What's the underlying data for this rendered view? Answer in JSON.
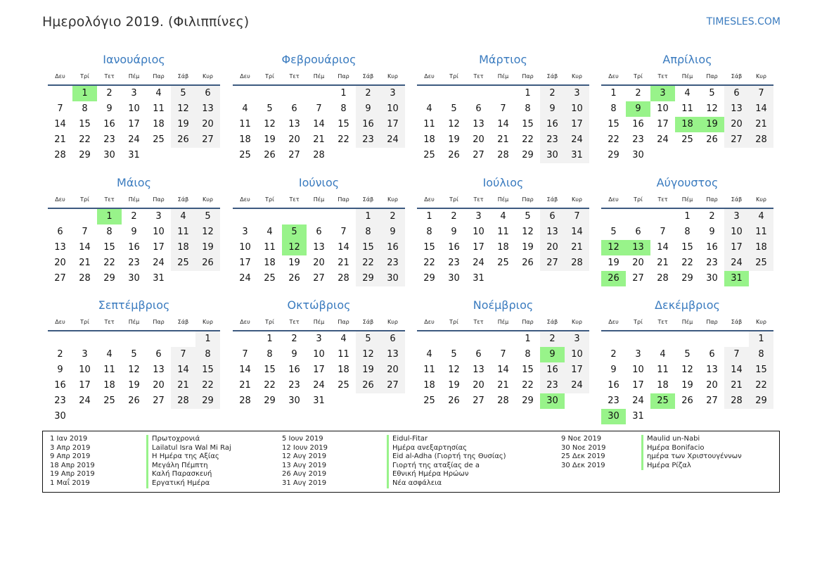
{
  "header": {
    "title": "Ημερολόγιο 2019. (Φιλιππίνες)",
    "site": "TIMESLES.COM"
  },
  "colors": {
    "accent": "#3a7bbf",
    "holiday": "#98f38a",
    "weekend": "#f2f2f2",
    "rule": "#3d5a80"
  },
  "weekdays": [
    "Δευ",
    "Τρί",
    "Τετ",
    "Πέμ",
    "Παρ",
    "Σάβ",
    "Κυρ"
  ],
  "months": [
    {
      "name": "Ιανουάριος",
      "holidays": [
        1
      ],
      "weeks": [
        [
          null,
          1,
          2,
          3,
          4,
          5,
          6
        ],
        [
          7,
          8,
          9,
          10,
          11,
          12,
          13
        ],
        [
          14,
          15,
          16,
          17,
          18,
          19,
          20
        ],
        [
          21,
          22,
          23,
          24,
          25,
          26,
          27
        ],
        [
          28,
          29,
          30,
          31
        ]
      ]
    },
    {
      "name": "Φεβρουάριος",
      "holidays": [],
      "weeks": [
        [
          null,
          null,
          null,
          null,
          1,
          2,
          3
        ],
        [
          4,
          5,
          6,
          7,
          8,
          9,
          10
        ],
        [
          11,
          12,
          13,
          14,
          15,
          16,
          17
        ],
        [
          18,
          19,
          20,
          21,
          22,
          23,
          24
        ],
        [
          25,
          26,
          27,
          28
        ]
      ]
    },
    {
      "name": "Μάρτιος",
      "holidays": [],
      "weeks": [
        [
          null,
          null,
          null,
          null,
          1,
          2,
          3
        ],
        [
          4,
          5,
          6,
          7,
          8,
          9,
          10
        ],
        [
          11,
          12,
          13,
          14,
          15,
          16,
          17
        ],
        [
          18,
          19,
          20,
          21,
          22,
          23,
          24
        ],
        [
          25,
          26,
          27,
          28,
          29,
          30,
          31
        ]
      ]
    },
    {
      "name": "Απρίλιος",
      "holidays": [
        3,
        9,
        18,
        19
      ],
      "weeks": [
        [
          1,
          2,
          3,
          4,
          5,
          6,
          7
        ],
        [
          8,
          9,
          10,
          11,
          12,
          13,
          14
        ],
        [
          15,
          16,
          17,
          18,
          19,
          20,
          21
        ],
        [
          22,
          23,
          24,
          25,
          26,
          27,
          28
        ],
        [
          29,
          30
        ]
      ]
    },
    {
      "name": "Μάιος",
      "holidays": [
        1
      ],
      "weeks": [
        [
          null,
          null,
          1,
          2,
          3,
          4,
          5
        ],
        [
          6,
          7,
          8,
          9,
          10,
          11,
          12
        ],
        [
          13,
          14,
          15,
          16,
          17,
          18,
          19
        ],
        [
          20,
          21,
          22,
          23,
          24,
          25,
          26
        ],
        [
          27,
          28,
          29,
          30,
          31
        ]
      ]
    },
    {
      "name": "Ιούνιος",
      "holidays": [
        5,
        12
      ],
      "weeks": [
        [
          null,
          null,
          null,
          null,
          null,
          1,
          2
        ],
        [
          3,
          4,
          5,
          6,
          7,
          8,
          9
        ],
        [
          10,
          11,
          12,
          13,
          14,
          15,
          16
        ],
        [
          17,
          18,
          19,
          20,
          21,
          22,
          23
        ],
        [
          24,
          25,
          26,
          27,
          28,
          29,
          30
        ]
      ]
    },
    {
      "name": "Ιούλιος",
      "holidays": [],
      "weeks": [
        [
          1,
          2,
          3,
          4,
          5,
          6,
          7
        ],
        [
          8,
          9,
          10,
          11,
          12,
          13,
          14
        ],
        [
          15,
          16,
          17,
          18,
          19,
          20,
          21
        ],
        [
          22,
          23,
          24,
          25,
          26,
          27,
          28
        ],
        [
          29,
          30,
          31
        ]
      ]
    },
    {
      "name": "Αύγουστος",
      "holidays": [
        12,
        13,
        26,
        31
      ],
      "weeks": [
        [
          null,
          null,
          null,
          1,
          2,
          3,
          4
        ],
        [
          5,
          6,
          7,
          8,
          9,
          10,
          11
        ],
        [
          12,
          13,
          14,
          15,
          16,
          17,
          18
        ],
        [
          19,
          20,
          21,
          22,
          23,
          24,
          25
        ],
        [
          26,
          27,
          28,
          29,
          30,
          31
        ]
      ]
    },
    {
      "name": "Σεπτέμβριος",
      "holidays": [],
      "weeks": [
        [
          null,
          null,
          null,
          null,
          null,
          null,
          1
        ],
        [
          2,
          3,
          4,
          5,
          6,
          7,
          8
        ],
        [
          9,
          10,
          11,
          12,
          13,
          14,
          15
        ],
        [
          16,
          17,
          18,
          19,
          20,
          21,
          22
        ],
        [
          23,
          24,
          25,
          26,
          27,
          28,
          29
        ],
        [
          30
        ]
      ]
    },
    {
      "name": "Οκτώβριος",
      "holidays": [],
      "weeks": [
        [
          null,
          1,
          2,
          3,
          4,
          5,
          6
        ],
        [
          7,
          8,
          9,
          10,
          11,
          12,
          13
        ],
        [
          14,
          15,
          16,
          17,
          18,
          19,
          20
        ],
        [
          21,
          22,
          23,
          24,
          25,
          26,
          27
        ],
        [
          28,
          29,
          30,
          31
        ]
      ]
    },
    {
      "name": "Νοέμβριος",
      "holidays": [
        9,
        30
      ],
      "weeks": [
        [
          null,
          null,
          null,
          null,
          1,
          2,
          3
        ],
        [
          4,
          5,
          6,
          7,
          8,
          9,
          10
        ],
        [
          11,
          12,
          13,
          14,
          15,
          16,
          17
        ],
        [
          18,
          19,
          20,
          21,
          22,
          23,
          24
        ],
        [
          25,
          26,
          27,
          28,
          29,
          30
        ]
      ]
    },
    {
      "name": "Δεκέμβριος",
      "holidays": [
        25,
        30
      ],
      "weeks": [
        [
          null,
          null,
          null,
          null,
          null,
          null,
          1
        ],
        [
          2,
          3,
          4,
          5,
          6,
          7,
          8
        ],
        [
          9,
          10,
          11,
          12,
          13,
          14,
          15
        ],
        [
          16,
          17,
          18,
          19,
          20,
          21,
          22
        ],
        [
          23,
          24,
          25,
          26,
          27,
          28,
          29
        ],
        [
          30,
          31
        ]
      ]
    }
  ],
  "legend": [
    [
      {
        "date": "1 Ιαν 2019",
        "name": "Πρωτοχρονιά"
      },
      {
        "date": "3 Απρ 2019",
        "name": "Lailatul Isra Wal Mi Raj"
      },
      {
        "date": "9 Απρ 2019",
        "name": "Η Ημέρα της Αξίας"
      },
      {
        "date": "18 Απρ 2019",
        "name": "Μεγάλη Πέμπτη"
      },
      {
        "date": "19 Απρ 2019",
        "name": "Καλή Παρασκευή"
      },
      {
        "date": "1 Μαΐ 2019",
        "name": "Εργατική Ημέρα"
      }
    ],
    [
      {
        "date": "5 Ιουν 2019",
        "name": "Eidul-Fitar"
      },
      {
        "date": "12 Ιουν 2019",
        "name": "Ημέρα ανεξαρτησίας"
      },
      {
        "date": "12 Αυγ 2019",
        "name": "Eid al-Adha (Γιορτή της Θυσίας)"
      },
      {
        "date": "13 Αυγ 2019",
        "name": "Γιορτή της αταξίας de a"
      },
      {
        "date": "26 Αυγ 2019",
        "name": "Εθνική Ημέρα Ηρώων"
      },
      {
        "date": "31 Αυγ 2019",
        "name": "Νέα ασφάλεια"
      }
    ],
    [
      {
        "date": "9 Νοε 2019",
        "name": "Maulid un-Nabi"
      },
      {
        "date": "30 Νοε 2019",
        "name": "Ημέρα Bonifacio"
      },
      {
        "date": "25 Δεκ 2019",
        "name": "ημέρα των Χριστουγέννων"
      },
      {
        "date": "30 Δεκ 2019",
        "name": "Ημέρα Ρίζαλ"
      }
    ]
  ]
}
